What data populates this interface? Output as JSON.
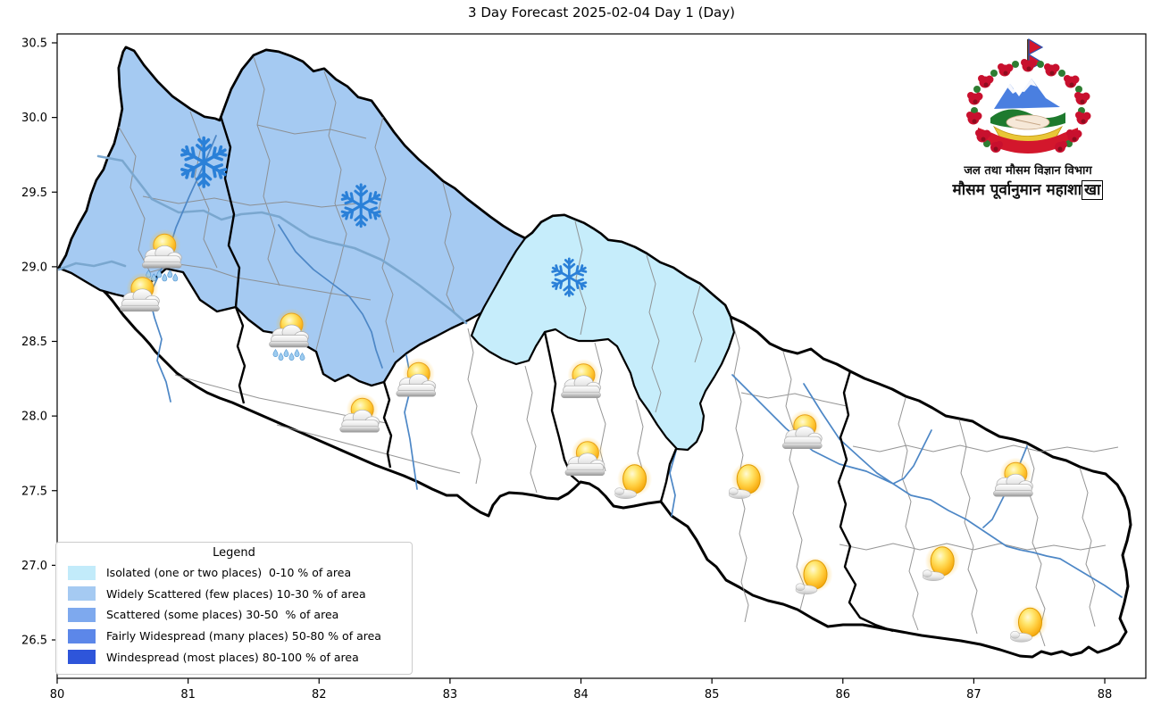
{
  "title": "3 Day Forecast 2025-02-04 Day 1 (Day)",
  "axes": {
    "x_tick_values": [
      80,
      81,
      82,
      83,
      84,
      85,
      86,
      87,
      88
    ],
    "x_tick_labels": [
      "80",
      "81",
      "82",
      "83",
      "84",
      "85",
      "86",
      "87",
      "88"
    ],
    "y_tick_values": [
      30.5,
      30.0,
      29.5,
      29.0,
      28.5,
      28.0,
      27.5,
      27.0,
      26.5
    ],
    "y_tick_labels": [
      "30.5",
      "30.0",
      "29.5",
      "29.0",
      "28.5",
      "28.0",
      "27.5",
      "27.0",
      "26.5"
    ]
  },
  "legend": {
    "title": "Legend",
    "items": [
      {
        "label": "Isolated (one or two places)  0-10 % of area",
        "color": "#c2ebfa"
      },
      {
        "label": "Widely Scattered (few places) 10-30 % of area",
        "color": "#a5caf2"
      },
      {
        "label": "Scattered (some places) 30-50  % of area",
        "color": "#7ea9ee"
      },
      {
        "label": "Fairly Widespread (many places) 50-80 % of area",
        "color": "#5c87e9"
      },
      {
        "label": "Windespread (most places) 80-100 % of area",
        "color": "#2e55da"
      }
    ]
  },
  "logo": {
    "line1": "जल तथा मौसम विज्ञान विभाग",
    "line2_main": "मौसम पूर्वानुमान महाशा",
    "line2_boxed": "खा"
  },
  "map_regions": [
    {
      "name": "widely-scattered-west",
      "category": "Widely Scattered (few places) 10-30 %",
      "color": "#a5caf2"
    },
    {
      "name": "isolated-central",
      "category": "Isolated (one or two places) 0-10 %",
      "color": "#c6edfb"
    },
    {
      "name": "country-rest",
      "category": "none",
      "color": "#ffffff"
    }
  ],
  "weather_icons": [
    {
      "type": "snow",
      "lon": 81.12,
      "lat": 29.7,
      "scale": 1.05
    },
    {
      "type": "snow",
      "lon": 82.32,
      "lat": 29.41,
      "scale": 0.9
    },
    {
      "type": "snow",
      "lon": 83.91,
      "lat": 28.93,
      "scale": 0.8
    },
    {
      "type": "sunrain",
      "lon": 80.8,
      "lat": 29.09,
      "scale": 1.0
    },
    {
      "type": "partly",
      "lon": 80.63,
      "lat": 28.8,
      "scale": 1.0
    },
    {
      "type": "sunrain",
      "lon": 81.77,
      "lat": 28.56,
      "scale": 1.0
    },
    {
      "type": "partly",
      "lon": 82.74,
      "lat": 28.23,
      "scale": 1.0
    },
    {
      "type": "partly",
      "lon": 82.31,
      "lat": 27.99,
      "scale": 1.0
    },
    {
      "type": "partly",
      "lon": 84.0,
      "lat": 28.22,
      "scale": 1.0
    },
    {
      "type": "partly",
      "lon": 84.03,
      "lat": 27.7,
      "scale": 1.0
    },
    {
      "type": "sunny",
      "lon": 84.41,
      "lat": 27.56,
      "scale": 1.0
    },
    {
      "type": "sunny",
      "lon": 85.28,
      "lat": 27.56,
      "scale": 1.0
    },
    {
      "type": "partly",
      "lon": 85.69,
      "lat": 27.88,
      "scale": 1.0
    },
    {
      "type": "sunny",
      "lon": 85.79,
      "lat": 26.92,
      "scale": 1.0
    },
    {
      "type": "sunny",
      "lon": 86.76,
      "lat": 27.01,
      "scale": 1.0
    },
    {
      "type": "partly",
      "lon": 87.3,
      "lat": 27.56,
      "scale": 1.0
    },
    {
      "type": "sunny",
      "lon": 87.43,
      "lat": 26.6,
      "scale": 1.0
    }
  ],
  "colors": {
    "snowflake": "#2a80d8",
    "river": "#4d87c6",
    "basin": "#7aa7cf",
    "border": "#000000"
  }
}
